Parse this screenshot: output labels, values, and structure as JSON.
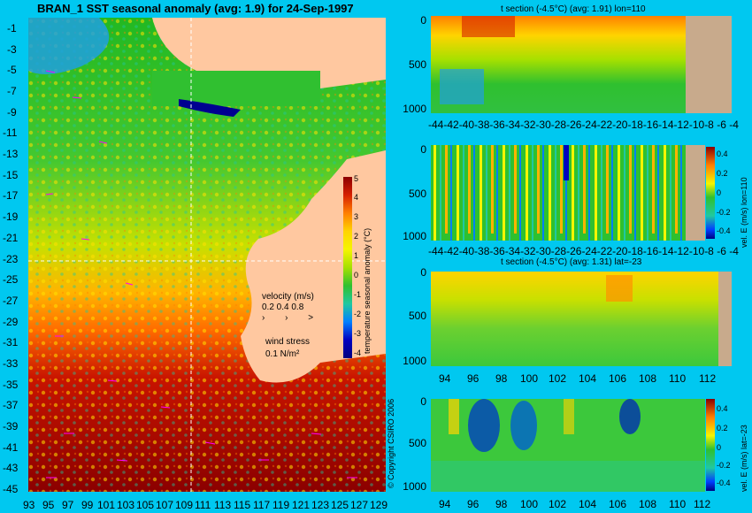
{
  "map": {
    "title": "BRAN_1  SST seasonal anomaly  (avg: 1.9)  for 24-Sep-1997",
    "lat_ticks": [
      "-1",
      "-3",
      "-5",
      "-7",
      "-9",
      "-11",
      "-13",
      "-15",
      "-17",
      "-19",
      "-21",
      "-23",
      "-25",
      "-27",
      "-29",
      "-31",
      "-33",
      "-35",
      "-37",
      "-39",
      "-41",
      "-43",
      "-45"
    ],
    "lon_ticks": [
      "93",
      "95",
      "97",
      "99",
      "101",
      "103",
      "105",
      "107",
      "109",
      "111",
      "113",
      "115",
      "117",
      "119",
      "121",
      "123",
      "125",
      "127",
      "129"
    ],
    "colorbar": {
      "ticks": [
        "5",
        "4",
        "3",
        "2",
        "1",
        "0",
        "-1",
        "-2",
        "-3",
        "-4"
      ],
      "label": "temperature seasonal anomaly (°C)",
      "colors": [
        "#8b0000",
        "#d62000",
        "#ff7f00",
        "#ffd400",
        "#f5f500",
        "#a6e000",
        "#2fc02f",
        "#20c8a0",
        "#0080ff",
        "#0000c0",
        "#000080"
      ]
    },
    "legend": {
      "velocity_label": "velocity (m/s)",
      "velocity_values": "0.2 0.4 0.8",
      "wind_label": "wind stress",
      "wind_value": "0.1 N/m²"
    },
    "copyright": "© Copyright CSIRO 2006",
    "land_color": "#ffc8a0",
    "arrow_color": "#ff00ff"
  },
  "panels": [
    {
      "title": "t section (-4.5°C) (avg: 1.91) lon=110",
      "y_ticks": [
        "0",
        "500",
        "1000"
      ],
      "x_ticks": [
        "-44",
        "-42",
        "-40",
        "-38",
        "-36",
        "-34",
        "-32",
        "-30",
        "-28",
        "-26",
        "-24",
        "-22",
        "-20",
        "-18",
        "-16",
        "-14",
        "-12",
        "-10",
        "-8",
        "-6",
        "-4"
      ]
    },
    {
      "title": "",
      "y_ticks": [
        "0",
        "500",
        "1000"
      ],
      "x_ticks": [
        "-44",
        "-42",
        "-40",
        "-38",
        "-36",
        "-34",
        "-32",
        "-30",
        "-28",
        "-26",
        "-24",
        "-22",
        "-20",
        "-18",
        "-16",
        "-14",
        "-12",
        "-10",
        "-8",
        "-6",
        "-4"
      ],
      "colorbar_ticks": [
        "0.4",
        "0.2",
        "0",
        "-0.2",
        "-0.4"
      ],
      "colorbar_label": "vel. E (m/s) lon=110"
    },
    {
      "title": "t section (-4.5°C) (avg: 1.31) lat=-23",
      "y_ticks": [
        "0",
        "500",
        "1000"
      ],
      "x_ticks": [
        "94",
        "96",
        "98",
        "100",
        "102",
        "104",
        "106",
        "108",
        "110",
        "112"
      ]
    },
    {
      "title": "",
      "y_ticks": [
        "0",
        "500",
        "1000"
      ],
      "x_ticks": [
        "94",
        "96",
        "98",
        "100",
        "102",
        "104",
        "106",
        "108",
        "110",
        "112"
      ],
      "colorbar_ticks": [
        "0.4",
        "0.2",
        "0",
        "-0.2",
        "-0.4"
      ],
      "colorbar_label": "vel. E (m/s) lat=-23"
    }
  ]
}
